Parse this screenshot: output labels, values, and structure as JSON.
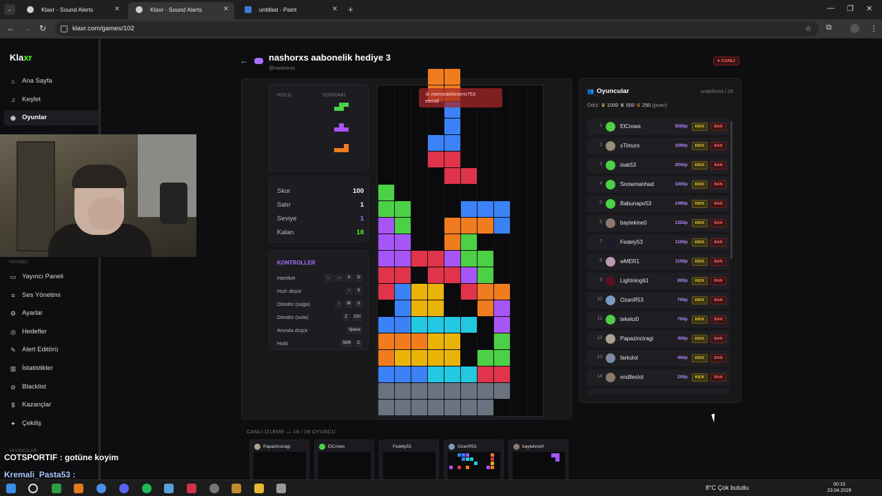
{
  "browser": {
    "tabs": [
      {
        "title": "Klaxr - Sound Alerts",
        "active": false
      },
      {
        "title": "Klaxr - Sound Alerts",
        "active": true
      },
      {
        "title": "untitled - Paint",
        "active": false
      }
    ],
    "url": "klaxr.com/games/102"
  },
  "sidebar": {
    "logo_main": "Kla",
    "logo_accent": "xr",
    "top_items": [
      {
        "label": "Ana Sayfa",
        "icon": "home-icon"
      },
      {
        "label": "Keşfet",
        "icon": "music-icon"
      },
      {
        "label": "Oyunlar",
        "icon": "gamepad-icon",
        "active": true
      }
    ],
    "section_streamer": "YAYINCI",
    "streamer_items": [
      {
        "label": "Yayıncı Paneli",
        "icon": "monitor-icon"
      },
      {
        "label": "Ses Yönetimi",
        "icon": "list-icon"
      },
      {
        "label": "Ayarlar",
        "icon": "gear-icon"
      },
      {
        "label": "Hedefler",
        "icon": "target-icon"
      },
      {
        "label": "Alert Editörü",
        "icon": "edit-icon"
      },
      {
        "label": "İstatistikler",
        "icon": "chart-icon"
      },
      {
        "label": "Blacklist",
        "icon": "block-icon"
      },
      {
        "label": "Kazançlar",
        "icon": "money-icon"
      },
      {
        "label": "Çekiliş",
        "icon": "gift-icon"
      }
    ],
    "section_streamers": "YAYINCILAR"
  },
  "page": {
    "title": "nashorxs aabonelik hediye 3",
    "subtitle": "@nashorxs",
    "live_badge": "● CANLI"
  },
  "game": {
    "hold_label": "HOLD",
    "next_label": "SONRAKI",
    "stats": [
      {
        "label": "Skor",
        "value": "100",
        "color": "#ffffff"
      },
      {
        "label": "Satır",
        "value": "1",
        "color": "#ffffff"
      },
      {
        "label": "Seviye",
        "value": "1",
        "color": "#a970ff"
      },
      {
        "label": "Kalan",
        "value": "18",
        "color": "#53fc18"
      }
    ],
    "controls_title": "KONTROLLER",
    "controls": [
      {
        "label": "Hareket",
        "keys": [
          "←",
          "→",
          "A",
          "D"
        ]
      },
      {
        "label": "Hızlı düşür",
        "keys": [
          "↓",
          "S"
        ]
      },
      {
        "label": "Döndür (sağa)",
        "keys": [
          "↑",
          "W",
          "X"
        ]
      },
      {
        "label": "Döndür (sola)",
        "keys": [
          "Z",
          "Ctrl"
        ]
      },
      {
        "label": "Anında düşür",
        "keys": [
          "Space"
        ]
      },
      {
        "label": "Hold",
        "keys": [
          "Shift",
          "C"
        ]
      }
    ],
    "elimination": {
      "user": "mervedelimerm753",
      "text": "elendi"
    },
    "board_rows": [
      "...oo...",
      "...oo...",
      "....b...",
      "....b...",
      "...bb...",
      "...rr...",
      "....rr..",
      "g.......",
      "gg...bbb",
      "pg..ooob",
      "pp..og..",
      "pprrpgg.",
      "rr.rrpg.",
      "rbyy.roo",
      ".byy..op",
      "bbcccc.p",
      "oooyy..g",
      "oyyyy.gg",
      "bbbcccrr",
      "xxxxxxxx",
      "xxxxxxx."
    ],
    "colors": {
      "o": "#f07c1e",
      "b": "#3b82f6",
      "r": "#e0344a",
      "g": "#4cd146",
      "p": "#a855f7",
      "y": "#eab308",
      "c": "#22c9e0",
      "x": "#6b7280"
    }
  },
  "live_watch": {
    "title": "CANLI İZLEME — 18 / 28 OYUNCU",
    "players": [
      "Papazinciragi",
      "ElCrows",
      "Fedely53",
      "OzanR53",
      "baytekine0"
    ]
  },
  "players_panel": {
    "title": "Oyuncular",
    "count": "undefined / 28",
    "reward_label": "Ödül:",
    "rewards": [
      "1000",
      "500",
      "250"
    ],
    "reward_unit": "(puan)",
    "kick_label": "KICK",
    "ban_label": "BAN",
    "players": [
      {
        "rank": "1",
        "name": "ElCrows",
        "points": "5500p",
        "avatar": "#4cd146"
      },
      {
        "rank": "2",
        "name": "sTimurs",
        "points": "3390p",
        "avatar": "#9a8b7a"
      },
      {
        "rank": "3",
        "name": "isak53",
        "points": "2042p",
        "avatar": "#4cd146"
      },
      {
        "rank": "4",
        "name": "Snowmanhad",
        "points": "1900p",
        "avatar": "#4cd146"
      },
      {
        "rank": "5",
        "name": "Babunapo53",
        "points": "1490p",
        "avatar": "#4cd146"
      },
      {
        "rank": "6",
        "name": "baytekine0",
        "points": "1352p",
        "avatar": "#8a7a70"
      },
      {
        "rank": "7",
        "name": "Fedely53",
        "points": "1100p",
        "avatar": "#1a1a2a"
      },
      {
        "rank": "8",
        "name": "wMER1",
        "points": "1100p",
        "avatar": "#b89ab0"
      },
      {
        "rank": "9",
        "name": "Lightning61",
        "points": "800p",
        "avatar": "#5a1020"
      },
      {
        "rank": "10",
        "name": "OzanR53",
        "points": "700p",
        "avatar": "#7a9ac0"
      },
      {
        "rank": "11",
        "name": "tekelci0",
        "points": "700p",
        "avatar": "#4cd146"
      },
      {
        "rank": "12",
        "name": "Papazinciragi",
        "points": "400p",
        "avatar": "#b0a090"
      },
      {
        "rank": "13",
        "name": "farkolol",
        "points": "400p",
        "avatar": "#7a8aa0"
      },
      {
        "rank": "14",
        "name": "endllesIol",
        "points": "200p",
        "avatar": "#8a7a6a"
      }
    ]
  },
  "chat": [
    {
      "user": "COTSPORTIF",
      "text": "COTSPORTIF : gotüne koyim"
    },
    {
      "user": "Kremali_Pasta53",
      "text": "Kremali_Pasta53 :"
    }
  ],
  "taskbar": {
    "weather": "8°C  Çok bulutlu",
    "time": "00:15",
    "date": "23.04.2026"
  }
}
